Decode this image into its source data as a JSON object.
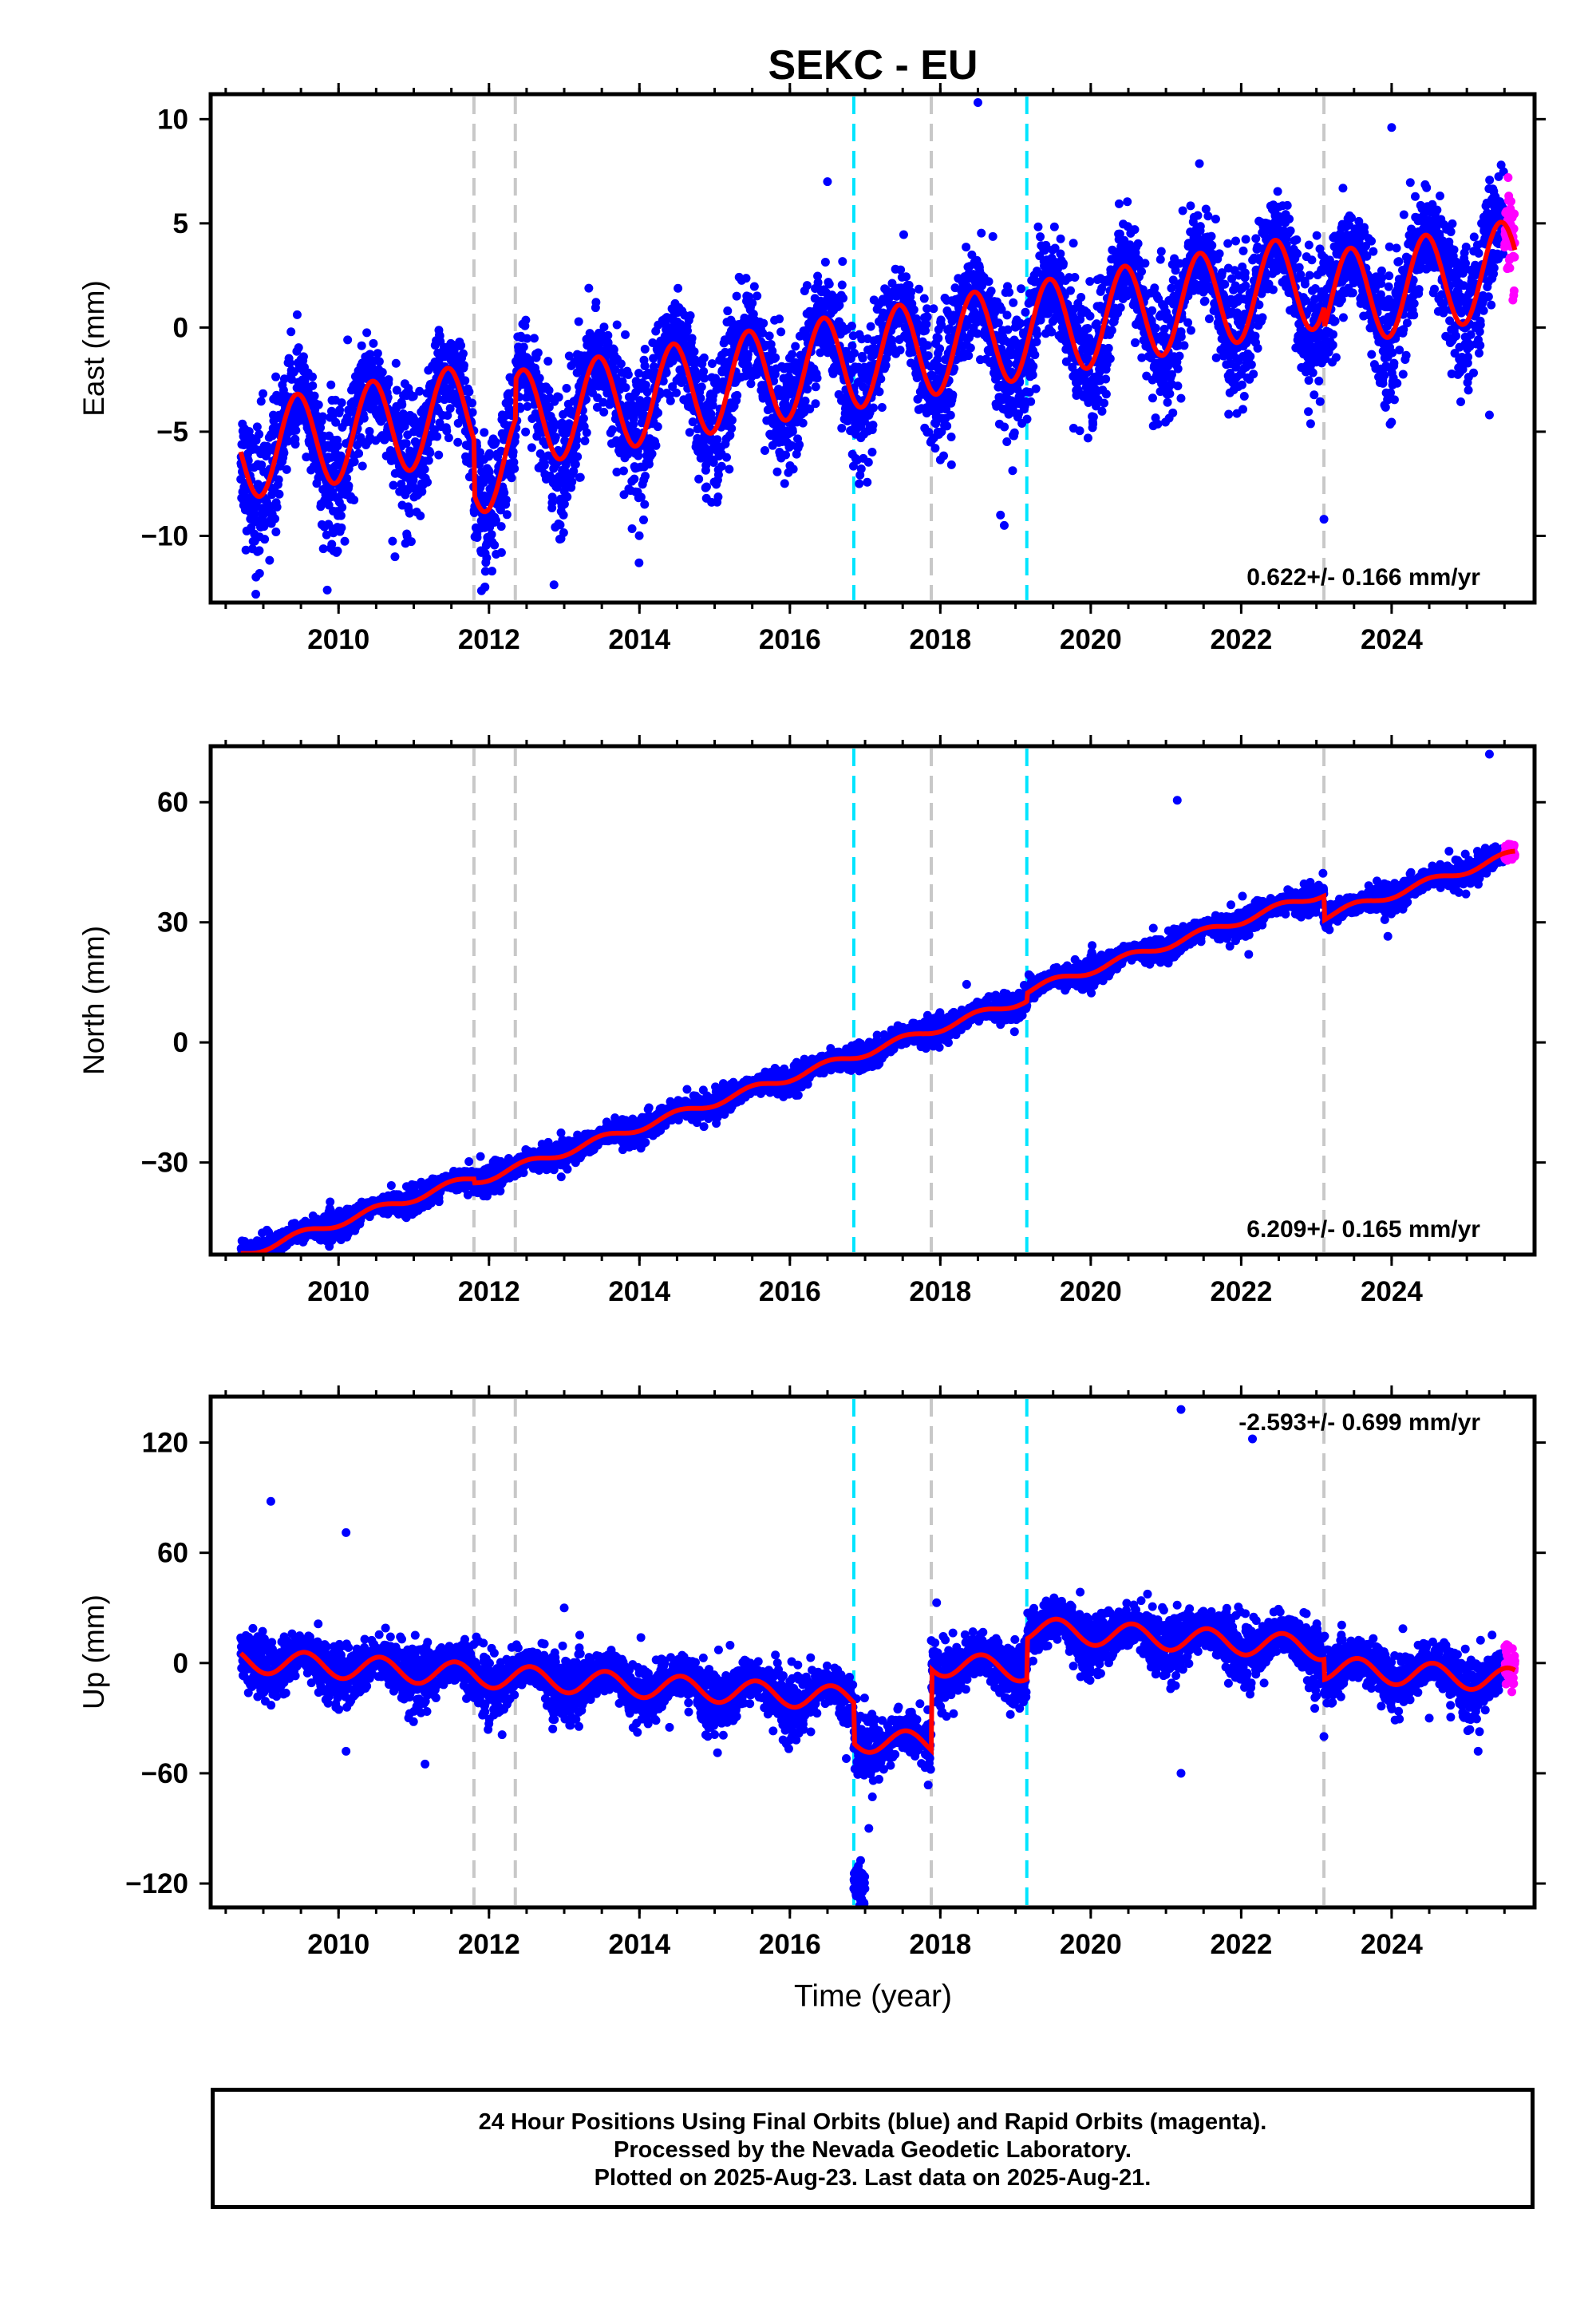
{
  "title": "SEKC - EU",
  "xlabel": "Time (year)",
  "caption": {
    "line1": "24 Hour Positions Using Final Orbits (blue) and Rapid Orbits (magenta).",
    "line2": "Processed by the Nevada Geodetic Laboratory.",
    "line3": "Plotted on 2025-Aug-23. Last data on 2025-Aug-21."
  },
  "colors": {
    "final_orbits": "#0000ff",
    "rapid_orbits": "#ff00ff",
    "model": "#ff0000",
    "equipment_change": "#c8c8c8",
    "earthquake": "#00e5ff"
  },
  "chart_data": [
    {
      "type": "scatter",
      "ylabel": "East (mm)",
      "rate_label": "0.622+/- 0.166 mm/yr",
      "xlim": [
        2008.3,
        2025.9
      ],
      "ylim": [
        -13.2,
        11.2
      ],
      "x_ticks": [
        2010,
        2012,
        2014,
        2016,
        2018,
        2020,
        2022,
        2024
      ],
      "y_ticks": [
        -10,
        -5,
        0,
        5,
        10
      ],
      "y_tick_labels": [
        "−10",
        "−5",
        "0",
        "5",
        "10"
      ],
      "data_start": 2008.7,
      "data_end": 2025.64,
      "rapid_start": 2025.5,
      "rate": 0.622,
      "model": {
        "intercept_2017": -0.8,
        "seasonal_amplitude": 2.3,
        "seasonal_peak_phase": 0.45,
        "scatter": 1.4,
        "offsets": [
          {
            "t": 2011.8,
            "dy": -2.6
          },
          {
            "t": 2012.35,
            "dy": 1.9
          },
          {
            "t": 2016.85,
            "dy": 0.0
          },
          {
            "t": 2017.88,
            "dy": 0.0
          },
          {
            "t": 2019.15,
            "dy": 0.0
          },
          {
            "t": 2023.1,
            "dy": -1.0
          }
        ]
      },
      "outliers": [
        {
          "x": 2008.9,
          "y": -12.8
        },
        {
          "x": 2008.95,
          "y": -11.8
        },
        {
          "x": 2010.75,
          "y": -11.0
        },
        {
          "x": 2011.9,
          "y": -10.8
        },
        {
          "x": 2018.5,
          "y": 10.8
        },
        {
          "x": 2016.5,
          "y": 7.0
        },
        {
          "x": 2018.8,
          "y": -9.0
        },
        {
          "x": 2018.85,
          "y": -9.5
        },
        {
          "x": 2023.1,
          "y": -9.2
        },
        {
          "x": 2024.0,
          "y": 9.6
        },
        {
          "x": 2025.3,
          "y": -4.2
        },
        {
          "x": 2021.2,
          "y": -3.4
        }
      ]
    },
    {
      "type": "scatter",
      "ylabel": "North (mm)",
      "rate_label": "6.209+/- 0.165 mm/yr",
      "xlim": [
        2008.3,
        2025.9
      ],
      "ylim": [
        -53,
        74
      ],
      "x_ticks": [
        2010,
        2012,
        2014,
        2016,
        2018,
        2020,
        2022,
        2024
      ],
      "y_ticks": [
        -30,
        0,
        30,
        60
      ],
      "y_tick_labels": [
        "−30",
        "0",
        "30",
        "60"
      ],
      "data_start": 2008.7,
      "data_end": 2025.64,
      "rapid_start": 2025.5,
      "rate": 6.209,
      "model": {
        "intercept_2017": -1.5,
        "seasonal_amplitude": 1.0,
        "seasonal_peak_phase": 0.5,
        "scatter": 1.4,
        "offsets": [
          {
            "t": 2011.8,
            "dy": -1.0
          },
          {
            "t": 2012.35,
            "dy": 0.0
          },
          {
            "t": 2016.85,
            "dy": 0.0
          },
          {
            "t": 2017.88,
            "dy": 0.0
          },
          {
            "t": 2019.15,
            "dy": 2.0
          },
          {
            "t": 2023.1,
            "dy": -6.0
          }
        ]
      },
      "outliers": [
        {
          "x": 2021.15,
          "y": 60.5
        },
        {
          "x": 2025.3,
          "y": 72.0
        },
        {
          "x": 2023.95,
          "y": 26.5
        },
        {
          "x": 2022.1,
          "y": 22.0
        },
        {
          "x": 2018.35,
          "y": 14.5
        }
      ]
    },
    {
      "type": "scatter",
      "ylabel": "Up (mm)",
      "rate_label": "-2.593+/- 0.699 mm/yr",
      "xlim": [
        2008.3,
        2025.9
      ],
      "ylim": [
        -133,
        145
      ],
      "x_ticks": [
        2010,
        2012,
        2014,
        2016,
        2018,
        2020,
        2022,
        2024
      ],
      "y_ticks": [
        -120,
        -60,
        0,
        60,
        120
      ],
      "y_tick_labels": [
        "−120",
        "−60",
        "0",
        "60",
        "120"
      ],
      "data_start": 2008.7,
      "data_end": 2025.64,
      "rapid_start": 2025.5,
      "rate": -2.593,
      "model": {
        "intercept_2017": -20,
        "seasonal_amplitude": 6.5,
        "seasonal_peak_phase": 0.55,
        "scatter": 7.0,
        "offsets": [
          {
            "t": 2016.85,
            "dy": -22
          },
          {
            "t": 2017.88,
            "dy": 44
          },
          {
            "t": 2019.15,
            "dy": 22
          },
          {
            "t": 2023.1,
            "dy": -11
          }
        ]
      },
      "extra_cluster": {
        "x_from": 2016.85,
        "x_to": 2017.0,
        "y_center": -120,
        "y_spread": 6
      },
      "outliers": [
        {
          "x": 2009.1,
          "y": 88
        },
        {
          "x": 2010.1,
          "y": 71
        },
        {
          "x": 2021.2,
          "y": 138
        },
        {
          "x": 2022.15,
          "y": 122
        },
        {
          "x": 2021.2,
          "y": -60
        },
        {
          "x": 2016.75,
          "y": -52
        },
        {
          "x": 2017.05,
          "y": -90
        },
        {
          "x": 2011.15,
          "y": -55
        },
        {
          "x": 2010.1,
          "y": -48
        },
        {
          "x": 2023.1,
          "y": -40
        },
        {
          "x": 2025.15,
          "y": -48
        },
        {
          "x": 2024.5,
          "y": -30
        },
        {
          "x": 2013.0,
          "y": 30
        },
        {
          "x": 2014.4,
          "y": -35
        }
      ]
    }
  ],
  "event_lines": [
    {
      "x": 2011.8,
      "kind": "equipment_change"
    },
    {
      "x": 2012.35,
      "kind": "equipment_change"
    },
    {
      "x": 2016.85,
      "kind": "earthquake"
    },
    {
      "x": 2017.88,
      "kind": "equipment_change"
    },
    {
      "x": 2019.15,
      "kind": "earthquake"
    },
    {
      "x": 2023.1,
      "kind": "equipment_change"
    }
  ]
}
